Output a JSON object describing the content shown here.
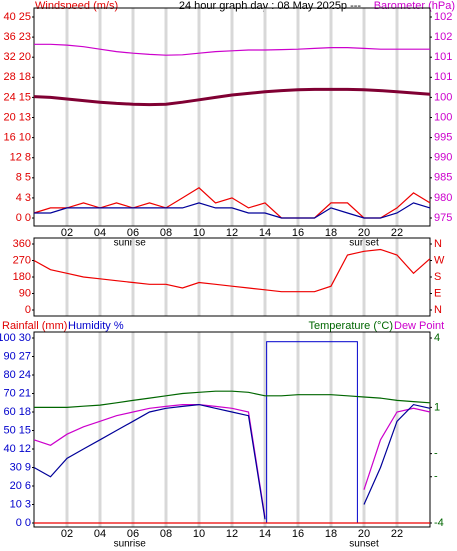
{
  "chart_data": [
    {
      "type": "line",
      "title": "24 hour graph day : 08 May 2025p   ---",
      "y_label": "Windspeed (m/s)",
      "y2_label": "Barometer (hPa)",
      "x": [
        0,
        1,
        2,
        3,
        4,
        5,
        6,
        7,
        8,
        9,
        10,
        11,
        12,
        13,
        14,
        15,
        16,
        17,
        18,
        19,
        20,
        21,
        22,
        23,
        24
      ],
      "xlim": [
        0,
        24
      ],
      "xticks": [
        {
          "value": 2,
          "label": "02"
        },
        {
          "value": 4,
          "label": "04"
        },
        {
          "value": 6,
          "label": "06"
        },
        {
          "value": 8,
          "label": "08"
        },
        {
          "value": 10,
          "label": "10"
        },
        {
          "value": 12,
          "label": "12"
        },
        {
          "value": 14,
          "label": "14"
        },
        {
          "value": 16,
          "label": "16"
        },
        {
          "value": 18,
          "label": "18"
        },
        {
          "value": 20,
          "label": "20"
        },
        {
          "value": 22,
          "label": "22"
        }
      ],
      "ylim": [
        0,
        40
      ],
      "yticks": [
        {
          "value": 0,
          "label": "0 0"
        },
        {
          "value": 4,
          "label": "4 3"
        },
        {
          "value": 8,
          "label": "8 5"
        },
        {
          "value": 12,
          "label": "12 8"
        },
        {
          "value": 16,
          "label": "16 10"
        },
        {
          "value": 20,
          "label": "20 13"
        },
        {
          "value": 24,
          "label": "24 15"
        },
        {
          "value": 28,
          "label": "28 18"
        },
        {
          "value": 32,
          "label": "32 20"
        },
        {
          "value": 36,
          "label": "36 23"
        },
        {
          "value": 40,
          "label": "40 25"
        }
      ],
      "y2lim": [
        975,
        1025
      ],
      "y2ticks": [
        975,
        980,
        985,
        990,
        995,
        {
          "value": 1000,
          "label": "100"
        },
        {
          "value": 1005,
          "label": "100"
        },
        {
          "value": 1010,
          "label": "101"
        },
        {
          "value": 1015,
          "label": "101"
        },
        {
          "value": 1020,
          "label": "102"
        },
        {
          "value": 1025,
          "label": "102"
        }
      ],
      "annotations": [
        {
          "text": "sunrise",
          "x": 5.8
        },
        {
          "text": "sunset",
          "x": 20.0
        }
      ],
      "series": [
        {
          "color": "#cc00cc",
          "axis": "y2",
          "values": [
            1018.2,
            1018.2,
            1018,
            1017.6,
            1017,
            1016.4,
            1016,
            1015.7,
            1015.5,
            1015.6,
            1016,
            1016.4,
            1016.6,
            1016.8,
            1016.8,
            1016.9,
            1017,
            1017.2,
            1017.4,
            1017.4,
            1017.2,
            1017,
            1017,
            1017,
            1017
          ]
        },
        {
          "color": "#800033",
          "axis": "y2",
          "width": 3,
          "values": [
            1005.2,
            1005,
            1004.6,
            1004.2,
            1003.8,
            1003.5,
            1003.3,
            1003.2,
            1003.3,
            1003.8,
            1004.4,
            1005,
            1005.6,
            1006,
            1006.4,
            1006.7,
            1006.9,
            1007,
            1007,
            1007,
            1006.9,
            1006.7,
            1006.4,
            1006.1,
            1005.8
          ]
        },
        {
          "color": "#ee0000",
          "values": [
            1,
            2,
            2,
            3,
            2,
            3,
            2,
            3,
            2,
            4,
            6,
            3,
            4,
            2,
            3,
            0,
            0,
            0,
            3,
            3,
            0,
            0,
            2,
            5,
            3
          ]
        },
        {
          "color": "#000099",
          "values": [
            1,
            1,
            2,
            2,
            2,
            2,
            2,
            2,
            2,
            2,
            3,
            2,
            2,
            1,
            1,
            0,
            0,
            0,
            2,
            1,
            0,
            0,
            1,
            3,
            2
          ]
        }
      ]
    },
    {
      "type": "line",
      "x": [
        0,
        1,
        2,
        3,
        4,
        5,
        6,
        7,
        8,
        9,
        10,
        11,
        12,
        13,
        14,
        15,
        16,
        17,
        18,
        19,
        20,
        21,
        22,
        23,
        24
      ],
      "xlim": [
        0,
        24
      ],
      "ylim": [
        0,
        360
      ],
      "yticks": [
        0,
        90,
        180,
        270,
        360
      ],
      "y2lim": [
        0,
        360
      ],
      "y2ticks": [
        {
          "value": 0,
          "label": "N"
        },
        {
          "value": 90,
          "label": "E"
        },
        {
          "value": 180,
          "label": "S"
        },
        {
          "value": 270,
          "label": "W"
        },
        {
          "value": 360,
          "label": "N"
        }
      ],
      "series": [
        {
          "color": "#ee0000",
          "values": [
            270,
            220,
            200,
            180,
            170,
            160,
            150,
            140,
            140,
            120,
            150,
            140,
            130,
            120,
            110,
            100,
            100,
            100,
            130,
            300,
            320,
            330,
            300,
            200,
            280
          ]
        }
      ]
    },
    {
      "type": "line",
      "y_label": "Rainfall (mm)",
      "y_label_2": "Humidity %",
      "y2_label": "Temperature (°C)",
      "y2_label_2": "Dew Point",
      "x": [
        0,
        1,
        2,
        3,
        4,
        5,
        6,
        7,
        8,
        9,
        10,
        11,
        12,
        13,
        14,
        15,
        16,
        17,
        18,
        19,
        20,
        21,
        22,
        23,
        24
      ],
      "xlim": [
        0,
        24
      ],
      "xticks": [
        {
          "value": 2,
          "label": "02"
        },
        {
          "value": 4,
          "label": "04"
        },
        {
          "value": 6,
          "label": "06"
        },
        {
          "value": 8,
          "label": "08"
        },
        {
          "value": 10,
          "label": "10"
        },
        {
          "value": 12,
          "label": "12"
        },
        {
          "value": 14,
          "label": "14"
        },
        {
          "value": 16,
          "label": "16"
        },
        {
          "value": 18,
          "label": "18"
        },
        {
          "value": 20,
          "label": "20"
        },
        {
          "value": 22,
          "label": "22"
        }
      ],
      "ylim": [
        0,
        100
      ],
      "yticks": [
        {
          "value": 0,
          "label": "0 0"
        },
        {
          "value": 10,
          "label": "10 3"
        },
        {
          "value": 20,
          "label": "20 6"
        },
        {
          "value": 30,
          "label": "30 9"
        },
        {
          "value": 40,
          "label": "40 12"
        },
        {
          "value": 50,
          "label": "50 15"
        },
        {
          "value": 60,
          "label": "60 18"
        },
        {
          "value": 70,
          "label": "70 21"
        },
        {
          "value": 80,
          "label": "80 24"
        },
        {
          "value": 90,
          "label": "90 27"
        },
        {
          "value": 100,
          "label": "100 30"
        }
      ],
      "y2lim": [
        -4,
        4
      ],
      "y2ticks": [
        {
          "value": -4,
          "label": "-4"
        },
        {
          "value": -2,
          "label": "-"
        },
        {
          "value": -1,
          "label": "-"
        },
        1,
        4
      ],
      "annotations": [
        {
          "text": "sunrise",
          "x": 5.8
        },
        {
          "text": "sunset",
          "x": 20.0
        }
      ],
      "band": {
        "x": [
          14.1,
          19.6
        ],
        "top": 98,
        "color": "#0000cc"
      },
      "series": [
        {
          "color": "#ee0000",
          "values": [
            0,
            0,
            0,
            0,
            0,
            0,
            0,
            0,
            0,
            0,
            0,
            0,
            0,
            0,
            0,
            0,
            0,
            0,
            0,
            0,
            0,
            0,
            0,
            0,
            0
          ]
        },
        {
          "color": "#006600",
          "axis": "y2",
          "values": [
            1,
            1,
            1,
            1.05,
            1.1,
            1.2,
            1.3,
            1.4,
            1.5,
            1.6,
            1.65,
            1.7,
            1.7,
            1.65,
            1.5,
            1.5,
            1.55,
            1.55,
            1.55,
            1.5,
            1.45,
            1.4,
            1.3,
            1.25,
            1.2
          ]
        },
        {
          "color": "#cc00cc",
          "values": [
            45,
            42,
            48,
            52,
            55,
            58,
            60,
            62,
            63,
            64,
            64,
            63,
            62,
            60,
            3,
            null,
            null,
            null,
            null,
            null,
            18,
            45,
            60,
            62,
            60
          ]
        },
        {
          "color": "#000099",
          "values": [
            30,
            25,
            35,
            40,
            45,
            50,
            55,
            60,
            62,
            63,
            64,
            62,
            60,
            58,
            2,
            null,
            null,
            null,
            null,
            null,
            10,
            30,
            55,
            64,
            62
          ]
        }
      ]
    }
  ]
}
